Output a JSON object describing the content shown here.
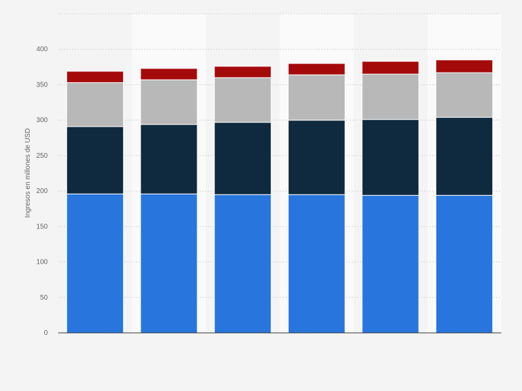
{
  "chart_data": {
    "type": "bar",
    "stacked": true,
    "title": "",
    "xlabel": "",
    "ylabel": "Ingresos en millones de USD",
    "ylim": [
      0,
      450
    ],
    "yticks": [
      0,
      50,
      100,
      150,
      200,
      250,
      300,
      350,
      400
    ],
    "grid": true,
    "categories": [
      "",
      "",
      "",
      "",
      "",
      ""
    ],
    "series": [
      {
        "values": [
          196,
          196,
          195,
          195,
          194,
          194
        ],
        "color": "#2876dd"
      },
      {
        "values": [
          95,
          98,
          102,
          105,
          107,
          110
        ],
        "color": "#0f2a3f"
      },
      {
        "values": [
          62,
          63,
          63,
          64,
          64,
          63
        ],
        "color": "#b8b8b8"
      },
      {
        "values": [
          16,
          16,
          16,
          16,
          18,
          18
        ],
        "color": "#a50a0a"
      }
    ]
  }
}
